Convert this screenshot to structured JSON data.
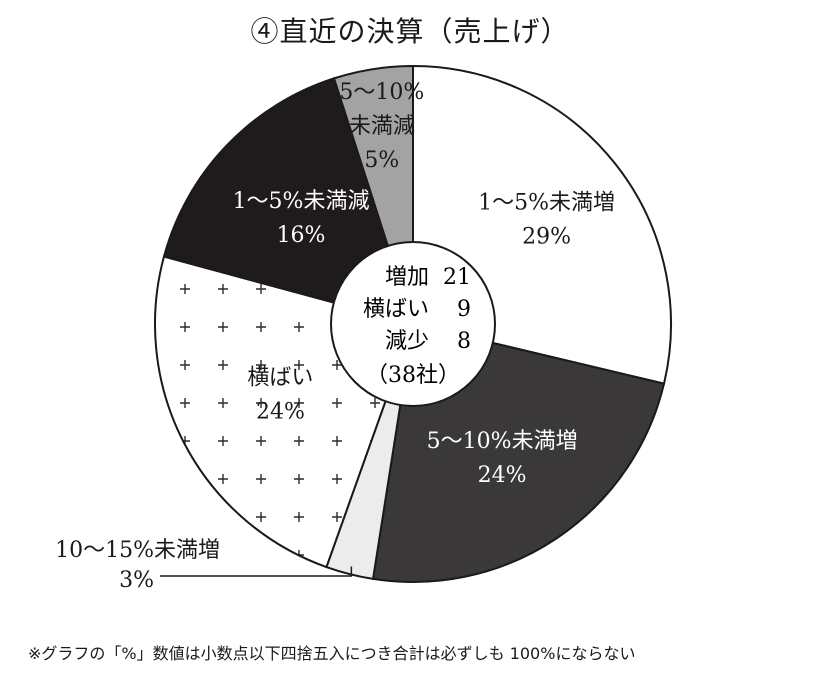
{
  "title": "④直近の決算（売上げ）",
  "chart_data": {
    "type": "pie",
    "title": "④直近の決算（売上げ）",
    "slices": [
      {
        "lines": [
          "1〜5%未満増",
          "29%"
        ],
        "value": 29,
        "color": "#ffffff",
        "pattern": "none",
        "text_color": "#1a1a1a"
      },
      {
        "lines": [
          "5〜10%未満増",
          "24%"
        ],
        "value": 24,
        "color": "#3a3838",
        "pattern": "none",
        "text_color": "#ffffff"
      },
      {
        "lines": [
          "10〜15%未満増",
          "3%"
        ],
        "value": 3,
        "color": "#ececec",
        "pattern": "none",
        "text_color": "#1a1a1a",
        "label_outside": true
      },
      {
        "lines": [
          "横ばい",
          "24%"
        ],
        "value": 24,
        "color": "#ffffff",
        "pattern": "plus",
        "text_color": "#1a1a1a"
      },
      {
        "lines": [
          "1〜5%未満減",
          "16%"
        ],
        "value": 16,
        "color": "#1f1a1b",
        "pattern": "none",
        "text_color": "#ffffff"
      },
      {
        "lines": [
          "5〜10%",
          "未満減",
          "5%"
        ],
        "value": 5,
        "color": "#a3a3a3",
        "pattern": "none",
        "text_color": "#1a1a1a"
      }
    ],
    "center_summary": [
      {
        "label": "増加",
        "value": "21"
      },
      {
        "label": "横ばい",
        "value": "9"
      },
      {
        "label": "減少",
        "value": "8"
      }
    ],
    "center_total": "（38社）"
  },
  "footnote": "※グラフの「%」数値は小数点以下四捨五入につき合計は必ずしも 100%にならない"
}
